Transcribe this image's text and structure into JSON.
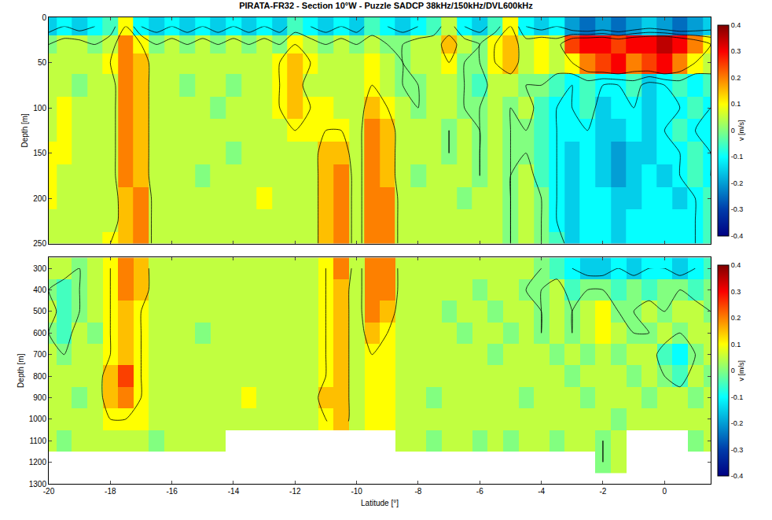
{
  "chart_data": [
    {
      "type": "heatmap",
      "title": "PIRATA-FR32 - Section 10°W - Puzzle SADCP 38kHz/150kHz/DVL600kHz",
      "ylabel": "Depth [m]",
      "tick_labels": "y",
      "x": [
        -20,
        -19.5,
        -19,
        -18.5,
        -18,
        -17.5,
        -17,
        -16.5,
        -16,
        -15.5,
        -15,
        -14.5,
        -14,
        -13.5,
        -13,
        -12.5,
        -12,
        -11.5,
        -11,
        -10.5,
        -10,
        -9.5,
        -9,
        -8.5,
        -8,
        -7.5,
        -7,
        -6.5,
        -6,
        -5.5,
        -5,
        -4.5,
        -4,
        -3.5,
        -3,
        -2.5,
        -2,
        -1.5,
        -1,
        -0.5,
        0,
        0.5,
        1,
        1.5
      ],
      "y": [
        10,
        30,
        50,
        75,
        100,
        125,
        150,
        175,
        200,
        225,
        250
      ],
      "z": [
        [
          -0.15,
          -0.1,
          -0.15,
          -0.1,
          -0.05,
          0.1,
          -0.1,
          -0.15,
          -0.1,
          -0.15,
          -0.1,
          -0.15,
          -0.1,
          -0.15,
          -0.1,
          -0.15,
          -0.05,
          -0.1,
          -0.15,
          -0.1,
          -0.15,
          -0.05,
          -0.1,
          -0.15,
          -0.1,
          -0.05,
          0.05,
          -0.1,
          -0.15,
          -0.05,
          0.1,
          -0.1,
          -0.15,
          -0.1,
          -0.2,
          -0.25,
          -0.2,
          -0.25,
          -0.2,
          -0.15,
          -0.2,
          -0.25,
          -0.2,
          -0.15
        ],
        [
          0,
          0.05,
          0.05,
          0,
          0.05,
          0.2,
          0.1,
          0,
          0.05,
          0,
          0.05,
          0,
          0.05,
          0,
          0.05,
          0,
          0.1,
          0.05,
          0,
          0.05,
          0,
          0.05,
          0,
          0,
          0.05,
          0.05,
          0.15,
          0.05,
          0,
          0.1,
          0.15,
          0.05,
          0.1,
          0.05,
          0.25,
          0.3,
          0.3,
          0.25,
          0.3,
          0.3,
          0.35,
          0.3,
          0.2,
          0.1
        ],
        [
          0.05,
          0.05,
          0.05,
          0.05,
          0.1,
          0.2,
          0.15,
          0.05,
          0.05,
          0.05,
          0.05,
          0.05,
          0.05,
          0.05,
          0.05,
          0.1,
          0.15,
          0.1,
          0.05,
          0.05,
          0.05,
          0.1,
          0.05,
          0,
          0.05,
          0.05,
          0.1,
          0,
          0,
          0.1,
          0.15,
          0.05,
          0.1,
          0.05,
          0.1,
          0.2,
          0.25,
          0.3,
          0.2,
          0.25,
          0.3,
          0.2,
          0.1,
          0.05
        ],
        [
          0.05,
          0.05,
          0,
          0.05,
          0.05,
          0.2,
          0.15,
          0.05,
          0.05,
          0,
          0.05,
          0.05,
          0,
          0.05,
          0.05,
          0.1,
          0.15,
          0.05,
          0.05,
          0.05,
          0.05,
          0.1,
          0.05,
          0,
          0,
          0.05,
          0.05,
          0,
          -0.05,
          0.05,
          0.05,
          0,
          0,
          -0.05,
          -0.1,
          -0.05,
          -0.1,
          -0.1,
          -0.05,
          -0.15,
          -0.1,
          -0.05,
          -0.1,
          -0.05
        ],
        [
          0.05,
          0.1,
          0.05,
          0.05,
          0.05,
          0.2,
          0.15,
          0.05,
          0.05,
          0.05,
          0.05,
          0,
          0.05,
          0.05,
          0.05,
          0.1,
          0.15,
          0.1,
          0.1,
          0.05,
          0.05,
          0.15,
          0.1,
          0.05,
          0,
          0.05,
          0.05,
          0,
          0,
          0.05,
          0,
          0.05,
          -0.05,
          -0.1,
          -0.1,
          -0.05,
          -0.15,
          -0.1,
          -0.1,
          -0.15,
          -0.1,
          -0.1,
          -0.05,
          -0.1
        ],
        [
          0.05,
          0.1,
          0.05,
          0.05,
          0.05,
          0.2,
          0.15,
          0.05,
          0.05,
          0.05,
          0.05,
          0.05,
          0.05,
          0.05,
          0.05,
          0.05,
          0.1,
          0.1,
          0.1,
          0.1,
          0.05,
          0.2,
          0.15,
          0.05,
          0.05,
          0.05,
          0,
          0.05,
          0,
          0.05,
          0,
          0,
          -0.05,
          -0.1,
          -0.1,
          -0.1,
          -0.15,
          -0.15,
          -0.1,
          -0.15,
          -0.1,
          -0.05,
          -0.1,
          -0.1
        ],
        [
          0.1,
          0.1,
          0.05,
          0.05,
          0.05,
          0.2,
          0.15,
          0.05,
          0.05,
          0.05,
          0.05,
          0.05,
          0,
          0.05,
          0.05,
          0.05,
          0.05,
          0.05,
          0.15,
          0.15,
          0.05,
          0.2,
          0.15,
          0.05,
          0.05,
          0.05,
          0,
          0.05,
          0,
          0.05,
          0,
          0,
          -0.05,
          -0.1,
          -0.15,
          -0.1,
          -0.15,
          -0.2,
          -0.15,
          -0.15,
          -0.1,
          -0.1,
          -0.05,
          -0.1
        ],
        [
          0.1,
          0.05,
          0.05,
          0.05,
          0.05,
          0.2,
          0.15,
          0.05,
          0.05,
          0.05,
          0,
          0.05,
          0.05,
          0.05,
          0.05,
          0.05,
          0.05,
          0.05,
          0.15,
          0.2,
          0.05,
          0.2,
          0.15,
          0.05,
          0,
          0.05,
          0.05,
          0.05,
          0,
          0.05,
          0,
          0.05,
          -0.05,
          -0.1,
          -0.15,
          -0.1,
          -0.15,
          -0.2,
          -0.15,
          -0.1,
          -0.15,
          -0.1,
          -0.05,
          -0.1
        ],
        [
          0.1,
          0.05,
          0.05,
          0.05,
          0.05,
          0.15,
          0.2,
          0.05,
          0.05,
          0.05,
          0.05,
          0.05,
          0.05,
          0.05,
          0.1,
          0.05,
          0.05,
          0.05,
          0.15,
          0.2,
          0.05,
          0.2,
          0.2,
          0.05,
          0.05,
          0.05,
          0.05,
          0,
          0.05,
          0.05,
          0,
          0.05,
          0,
          -0.1,
          -0.15,
          -0.1,
          -0.1,
          -0.15,
          -0.15,
          -0.1,
          -0.1,
          -0.15,
          -0.1,
          -0.05
        ],
        [
          0.05,
          0.05,
          0.05,
          0.05,
          0.05,
          0.15,
          0.2,
          0.05,
          0.05,
          0.05,
          0.05,
          0.05,
          0.05,
          0.05,
          0.05,
          0.05,
          0.05,
          0.05,
          0.15,
          0.2,
          0.05,
          0.2,
          0.2,
          0.05,
          0.05,
          0.05,
          0.05,
          0.05,
          0.05,
          0.05,
          0,
          0.05,
          0,
          -0.1,
          -0.15,
          -0.1,
          -0.1,
          -0.15,
          -0.1,
          -0.1,
          -0.1,
          -0.1,
          -0.1,
          -0.05
        ],
        [
          0.05,
          0.05,
          0.05,
          0.05,
          0.1,
          0.15,
          0.2,
          0.05,
          0.05,
          0.05,
          0.05,
          0.05,
          0.05,
          0.05,
          0.05,
          0.05,
          0.05,
          0.05,
          0.15,
          0.2,
          0.05,
          0.2,
          0.2,
          0.05,
          0.05,
          0.05,
          0.05,
          0.05,
          0.05,
          0.05,
          0,
          0.05,
          0,
          -0.05,
          -0.15,
          -0.1,
          -0.1,
          -0.15,
          -0.1,
          -0.1,
          -0.1,
          -0.1,
          -0.1,
          -0.05
        ]
      ],
      "xlim": [
        -20,
        1.5
      ],
      "xticks": [
        -20,
        -18,
        -16,
        -14,
        -12,
        -10,
        -8,
        -6,
        -4,
        -2,
        0
      ],
      "ylim": [
        0,
        250
      ],
      "yticks": [
        0,
        50,
        100,
        150,
        200,
        250
      ],
      "contour_levels": [
        -0.1,
        0,
        0.1
      ],
      "colorbar": {
        "label": "v [m/s]",
        "range": [
          -0.4,
          0.4
        ],
        "ticks": [
          -0.4,
          -0.3,
          -0.2,
          -0.1,
          0,
          0.1,
          0.2,
          0.3,
          0.4
        ]
      }
    },
    {
      "type": "heatmap",
      "xlabel": "Latitude [°]",
      "ylabel": "Depth [m]",
      "x": [
        -20,
        -19.5,
        -19,
        -18.5,
        -18,
        -17.5,
        -17,
        -16.5,
        -16,
        -15.5,
        -15,
        -14.5,
        -14,
        -13.5,
        -13,
        -12.5,
        -12,
        -11.5,
        -11,
        -10.5,
        -10,
        -9.5,
        -9,
        -8.5,
        -8,
        -7.5,
        -7,
        -6.5,
        -6,
        -5.5,
        -5,
        -4.5,
        -4,
        -3.5,
        -3,
        -2.5,
        -2,
        -1.5,
        -1,
        -0.5,
        0,
        0.5,
        1,
        1.5
      ],
      "y": [
        300,
        400,
        500,
        600,
        700,
        800,
        900,
        1000,
        1100,
        1200
      ],
      "z": [
        [
          0.05,
          0.05,
          0,
          0.05,
          0.1,
          0.2,
          0.15,
          0.05,
          0.05,
          0.05,
          0.05,
          0.05,
          0.05,
          0.05,
          0.05,
          0.05,
          0.05,
          0.05,
          0.1,
          0.2,
          0.05,
          0.2,
          0.2,
          0.05,
          0.05,
          0.05,
          0.05,
          0.05,
          0.05,
          0.05,
          0.05,
          0.05,
          0,
          -0.05,
          -0.1,
          -0.15,
          -0.15,
          -0.1,
          -0.15,
          -0.1,
          -0.1,
          -0.15,
          -0.1,
          -0.05
        ],
        [
          0,
          -0.05,
          0,
          0.05,
          0.1,
          0.2,
          0.15,
          0.05,
          0.05,
          0.05,
          0.05,
          0.05,
          0.05,
          0.05,
          0.05,
          0.05,
          0.05,
          0.05,
          0.1,
          0.15,
          0.05,
          0.2,
          0.2,
          0.05,
          0.05,
          0.05,
          0.05,
          0.05,
          0,
          0.05,
          0.05,
          0,
          0,
          0.05,
          -0.05,
          0,
          0,
          -0.05,
          0,
          -0.05,
          0,
          0,
          -0.05,
          0
        ],
        [
          0.05,
          -0.05,
          0,
          0.05,
          0.1,
          0.15,
          0.1,
          0.05,
          0.05,
          0.05,
          0.05,
          0.05,
          0.05,
          0.05,
          0.05,
          0.05,
          0.05,
          0.05,
          0.1,
          0.15,
          0.05,
          0.2,
          0.15,
          0.05,
          0.05,
          0.05,
          0,
          0.05,
          0.05,
          0,
          0.05,
          0.05,
          0,
          0.05,
          0,
          0.05,
          0.1,
          0,
          0,
          0.05,
          0,
          0.05,
          0.05,
          0
        ],
        [
          0,
          -0.05,
          0.05,
          0,
          0.1,
          0.15,
          0.1,
          0.05,
          0.05,
          0.05,
          0,
          0.05,
          0.05,
          0.05,
          0.05,
          0.05,
          0.05,
          0.05,
          0.1,
          0.15,
          0.05,
          0.15,
          0.1,
          0.05,
          0.05,
          0.05,
          0.05,
          0,
          0.05,
          0.05,
          0,
          0.05,
          0,
          0.05,
          0,
          0.05,
          0.1,
          0.05,
          0,
          0,
          0.05,
          0,
          0.05,
          0.05
        ],
        [
          0.05,
          0,
          0.05,
          0.05,
          0.1,
          0.15,
          0.1,
          0.05,
          0.05,
          0.05,
          0.05,
          0.05,
          0.05,
          0.05,
          0.05,
          0.05,
          0.05,
          0.05,
          0.1,
          0.15,
          0.05,
          0.1,
          0.1,
          0.05,
          0.05,
          0.05,
          0.05,
          0.05,
          0.05,
          0,
          0.05,
          0.05,
          0.05,
          0,
          0.05,
          0,
          0.05,
          0,
          0.05,
          0.05,
          -0.05,
          -0.1,
          0,
          0.05
        ],
        [
          0.05,
          0.05,
          0.05,
          0.05,
          0.15,
          0.25,
          0.1,
          0.05,
          0.05,
          0.05,
          0.05,
          0.05,
          0.05,
          0.05,
          0.05,
          0.05,
          0.05,
          0.05,
          0.1,
          0.15,
          0.05,
          0.1,
          0.1,
          0.05,
          0.05,
          0.05,
          0.05,
          0.05,
          0.05,
          0.05,
          0.05,
          0.05,
          0.05,
          0.05,
          0,
          0.05,
          0.05,
          0.05,
          0,
          0.05,
          0,
          -0.05,
          0.05,
          0
        ],
        [
          0.05,
          0.05,
          0,
          0.05,
          0.15,
          0.2,
          0.1,
          0.05,
          0.05,
          0.05,
          0.05,
          0.05,
          0.05,
          0.1,
          0.05,
          0.05,
          0.05,
          0.05,
          0.15,
          0.15,
          0.05,
          0.1,
          0.1,
          0.05,
          0.05,
          0,
          0.05,
          0.05,
          0.05,
          0.05,
          0.05,
          0,
          0.05,
          0.05,
          0.05,
          0,
          0.05,
          0.05,
          0.05,
          0,
          0.05,
          0.05,
          0,
          0.05
        ],
        [
          0.05,
          0.05,
          0.05,
          0.05,
          0.1,
          0.1,
          0.1,
          0.05,
          0.05,
          0.05,
          0.05,
          0.05,
          0.05,
          0.05,
          0.05,
          0.05,
          0.05,
          0.05,
          0.1,
          0.15,
          0.05,
          0.1,
          0.1,
          0.05,
          0.05,
          0.05,
          0.05,
          0.05,
          0.05,
          0.05,
          0.05,
          0.05,
          0.05,
          0.05,
          0.05,
          0.05,
          0.05,
          0,
          0.05,
          0.05,
          0.05,
          0.05,
          0.05,
          0.05
        ],
        [
          0.05,
          0,
          0.05,
          0.05,
          0.05,
          0.05,
          0.05,
          0,
          0.05,
          0.05,
          0.05,
          0.05,
          null,
          null,
          null,
          null,
          null,
          null,
          null,
          null,
          null,
          null,
          null,
          0.05,
          0.05,
          0,
          0.05,
          0.05,
          0,
          0.05,
          0,
          0.05,
          0.05,
          0,
          0.05,
          0.05,
          0,
          0.05,
          null,
          null,
          null,
          null,
          0,
          0.05
        ],
        [
          null,
          null,
          null,
          null,
          null,
          null,
          null,
          null,
          null,
          null,
          null,
          null,
          null,
          null,
          null,
          null,
          null,
          null,
          null,
          null,
          null,
          null,
          null,
          null,
          null,
          null,
          null,
          null,
          null,
          null,
          null,
          null,
          null,
          null,
          null,
          null,
          0,
          0.05,
          null,
          null,
          null,
          null,
          null,
          null
        ]
      ],
      "xlim": [
        -20,
        1.5
      ],
      "xticks": [
        -20,
        -18,
        -16,
        -14,
        -12,
        -10,
        -8,
        -6,
        -4,
        -2,
        0
      ],
      "ylim": [
        250,
        1300
      ],
      "yticks": [
        300,
        400,
        500,
        600,
        700,
        800,
        900,
        1000,
        1100,
        1200,
        1300
      ],
      "contour_levels": [
        -0.1,
        0,
        0.1
      ],
      "colorbar": {
        "label": "v [m/s]",
        "range": [
          -0.4,
          0.4
        ],
        "ticks": [
          -0.4,
          -0.3,
          -0.2,
          -0.1,
          0,
          0.1,
          0.2,
          0.3,
          0.4
        ]
      }
    }
  ]
}
